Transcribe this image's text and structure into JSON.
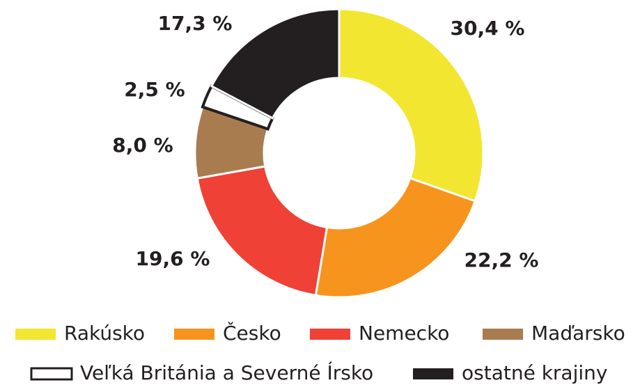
{
  "chart_data": {
    "type": "pie",
    "categories": [
      "Rakúsko",
      "Česko",
      "Nemecko",
      "Maďarsko",
      "Veľká Británia a Severné Írsko",
      "ostatné krajiny"
    ],
    "values": [
      30.4,
      22.2,
      19.6,
      8.0,
      2.5,
      17.3
    ],
    "value_labels": [
      "30,4 %",
      "22,2 %",
      "19,6 %",
      "8,0 %",
      "2,5 %",
      "17,3 %"
    ],
    "colors": [
      "#f2e630",
      "#f7941d",
      "#ef4136",
      "#a97c50",
      "#ffffff",
      "#231f20"
    ],
    "legend": "bottom"
  }
}
